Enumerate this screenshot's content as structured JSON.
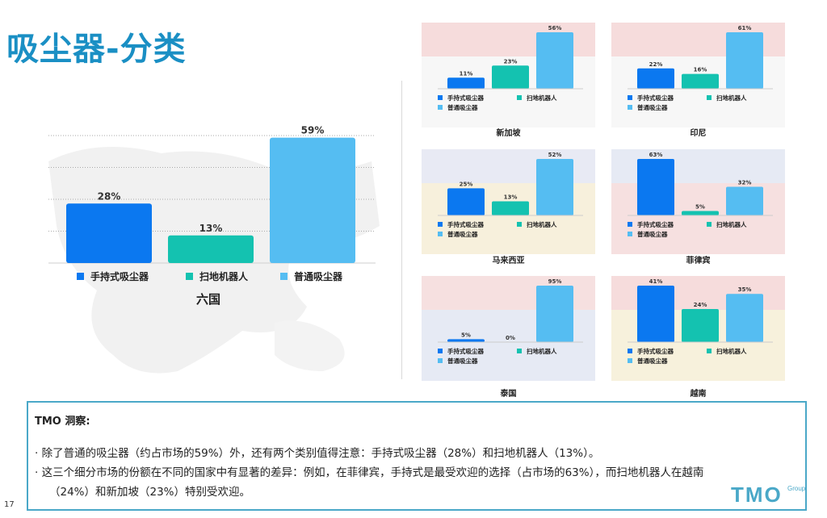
{
  "title": "吸尘器-分类",
  "colors": {
    "handheld": "#0b78f0",
    "robot": "#14c2b0",
    "upright": "#55bdf2",
    "accent": "#1a8fc4"
  },
  "chart_data": [
    {
      "type": "bar",
      "name": "六国",
      "categories": [
        "手持式吸尘器",
        "扫地机器人",
        "普通吸尘器"
      ],
      "values": [
        28,
        13,
        59
      ],
      "labels": [
        "28%",
        "13%",
        "59%"
      ]
    },
    {
      "type": "bar",
      "name": "新加坡",
      "categories": [
        "手持式吸尘器",
        "扫地机器人",
        "普通吸尘器"
      ],
      "values": [
        11,
        23,
        56
      ],
      "labels": [
        "11%",
        "23%",
        "56%"
      ]
    },
    {
      "type": "bar",
      "name": "印尼",
      "categories": [
        "手持式吸尘器",
        "扫地机器人",
        "普通吸尘器"
      ],
      "values": [
        22,
        16,
        61
      ],
      "labels": [
        "22%",
        "16%",
        "61%"
      ]
    },
    {
      "type": "bar",
      "name": "马来西亚",
      "categories": [
        "手持式吸尘器",
        "扫地机器人",
        "普通吸尘器"
      ],
      "values": [
        25,
        13,
        52
      ],
      "labels": [
        "25%",
        "13%",
        "52%"
      ]
    },
    {
      "type": "bar",
      "name": "菲律宾",
      "categories": [
        "手持式吸尘器",
        "扫地机器人",
        "普通吸尘器"
      ],
      "values": [
        63,
        5,
        32
      ],
      "labels": [
        "63%",
        "5%",
        "32%"
      ]
    },
    {
      "type": "bar",
      "name": "泰国",
      "categories": [
        "手持式吸尘器",
        "扫地机器人",
        "普通吸尘器"
      ],
      "values": [
        5,
        0,
        95
      ],
      "labels": [
        "5%",
        "0%",
        "95%"
      ]
    },
    {
      "type": "bar",
      "name": "越南",
      "categories": [
        "手持式吸尘器",
        "扫地机器人",
        "普通吸尘器"
      ],
      "values": [
        41,
        24,
        35
      ],
      "labels": [
        "41%",
        "24%",
        "35%"
      ]
    }
  ],
  "insight": {
    "title": "TMO 洞察:",
    "bullet1": "·  除了普通的吸尘器（约占市场的59%）外，还有两个类别值得注意：手持式吸尘器（28%）和扫地机器人（13%）。",
    "bullet2a": "·  这三个细分市场的份额在不同的国家中有显著的差异：例如，在菲律宾，手持式是最受欢迎的选择（占市场的63%），而扫地机器人在越南",
    "bullet2b": "（24%）和新加坡（23%）特别受欢迎。"
  },
  "page_number": "17",
  "logo": {
    "text": "TMO",
    "sub": "Group"
  }
}
